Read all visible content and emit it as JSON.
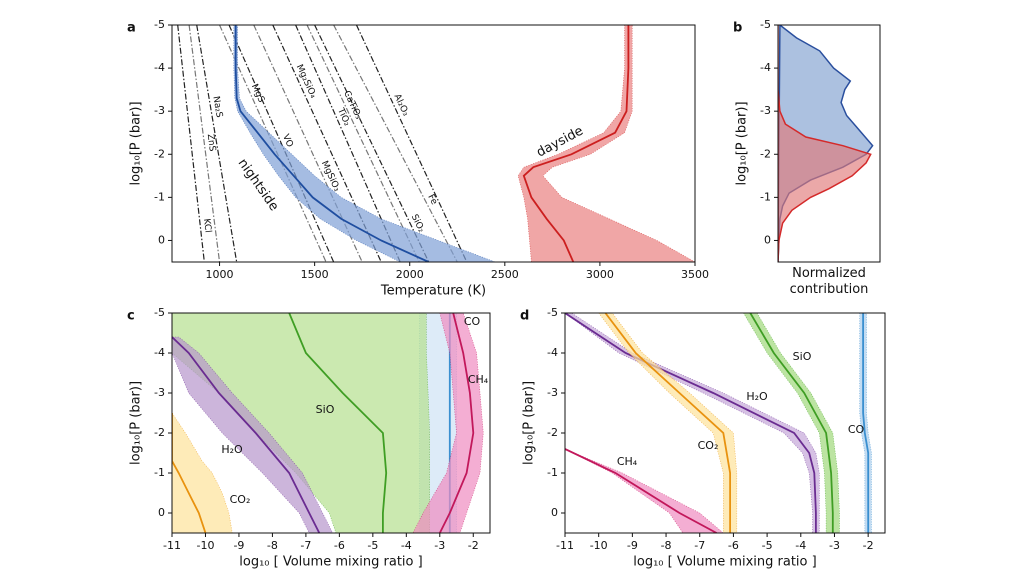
{
  "chart_data": [
    {
      "type": "line",
      "panel_label": "a",
      "xlabel": "Temperature (K)",
      "ylabel": "log₁₀[P (bar)]",
      "xlim": [
        750,
        3500
      ],
      "xticks": [
        1000,
        1500,
        2000,
        2500,
        3000,
        3500
      ],
      "ylim": [
        0.5,
        -5
      ],
      "yticks": [
        -5,
        -4,
        -3,
        -2,
        -1,
        0
      ],
      "series": [
        {
          "name": "nightside",
          "color": "#1f4ea0",
          "band_color": "#7f9fd6",
          "y": [
            -5,
            -4,
            -3.3,
            -3,
            -2.5,
            -2,
            -1.5,
            -1,
            -0.5,
            0,
            0.5
          ],
          "x": [
            1085,
            1085,
            1090,
            1110,
            1200,
            1290,
            1390,
            1490,
            1640,
            1850,
            2100
          ],
          "x_low": [
            1075,
            1075,
            1080,
            1095,
            1160,
            1230,
            1310,
            1400,
            1530,
            1720,
            1950
          ],
          "x_high": [
            1095,
            1095,
            1105,
            1140,
            1260,
            1380,
            1500,
            1640,
            1850,
            2150,
            2450
          ]
        },
        {
          "name": "dayside",
          "color": "#cc1f1f",
          "band_color": "#e98080",
          "y": [
            -5,
            -4,
            -3,
            -2.5,
            -2,
            -1.7,
            -1.5,
            -1,
            -0.5,
            0,
            0.5
          ],
          "x": [
            3150,
            3150,
            3140,
            3080,
            2850,
            2650,
            2600,
            2640,
            2720,
            2810,
            2860
          ],
          "x_low": [
            3130,
            3130,
            3110,
            3020,
            2780,
            2600,
            2570,
            2600,
            2620,
            2630,
            2640
          ],
          "x_high": [
            3170,
            3170,
            3170,
            3130,
            2950,
            2750,
            2700,
            2800,
            3050,
            3300,
            3500
          ]
        }
      ],
      "condensation_curves": [
        {
          "name": "KCl",
          "color": "#222222",
          "y": [
            -5,
            0.5
          ],
          "x": [
            780,
            920
          ]
        },
        {
          "name": "ZnS",
          "color": "#777777",
          "y": [
            -5,
            0.5
          ],
          "x": [
            840,
            1000
          ]
        },
        {
          "name": "Na₂S",
          "color": "#222222",
          "y": [
            -5,
            0.5
          ],
          "x": [
            880,
            1090
          ]
        },
        {
          "name": "MgS",
          "color": "#777777",
          "y": [
            -5,
            0.5
          ],
          "x": [
            1000,
            1560
          ]
        },
        {
          "name": "VO",
          "color": "#222222",
          "y": [
            -5,
            0.5
          ],
          "x": [
            1050,
            1600
          ]
        },
        {
          "name": "MgSiO₃",
          "color": "#777777",
          "y": [
            -5,
            0.5
          ],
          "x": [
            1180,
            1750
          ]
        },
        {
          "name": "Mg₂SiO₄",
          "color": "#222222",
          "y": [
            -5,
            0.5
          ],
          "x": [
            1280,
            1850
          ]
        },
        {
          "name": "TiO₂",
          "color": "#222222",
          "y": [
            -5,
            0.5
          ],
          "x": [
            1400,
            1950
          ]
        },
        {
          "name": "CaTiO₃",
          "color": "#777777",
          "y": [
            -5,
            0.5
          ],
          "x": [
            1460,
            2050
          ]
        },
        {
          "name": "SiO₂",
          "color": "#222222",
          "y": [
            -5,
            0.5
          ],
          "x": [
            1500,
            2100
          ]
        },
        {
          "name": "Fe",
          "color": "#777777",
          "y": [
            -5,
            0.5
          ],
          "x": [
            1600,
            2250
          ]
        },
        {
          "name": "Al₂O₃",
          "color": "#222222",
          "y": [
            -5,
            0.5
          ],
          "x": [
            1720,
            2300
          ]
        }
      ]
    },
    {
      "type": "area",
      "panel_label": "b",
      "xlabel": "Normalized contribution",
      "ylabel": "log₁₀[P (bar)]",
      "xlim": [
        0,
        1.1
      ],
      "ylim": [
        0.5,
        -5
      ],
      "yticks": [
        -5,
        -4,
        -3,
        -2,
        -1,
        0
      ],
      "series": [
        {
          "color": "#2a4f9e",
          "band_color": "#7f9fd0",
          "y": [
            -5,
            -4.7,
            -4.4,
            -4,
            -3.7,
            -3.5,
            -3.2,
            -2.9,
            -2.5,
            -2.2,
            -2,
            -1.7,
            -1.4,
            -1.1,
            -0.8,
            -0.5,
            0,
            0.5
          ],
          "x": [
            0.02,
            0.2,
            0.45,
            0.6,
            0.78,
            0.72,
            0.68,
            0.74,
            0.9,
            1.02,
            0.95,
            0.7,
            0.35,
            0.12,
            0.05,
            0.02,
            0.01,
            0
          ]
        },
        {
          "color": "#d42a2a",
          "band_color": "#e07a7a",
          "y": [
            -5,
            -3.5,
            -3,
            -2.7,
            -2.4,
            -2.2,
            -2,
            -1.8,
            -1.5,
            -1.2,
            -1,
            -0.7,
            -0.4,
            0,
            0.5
          ],
          "x": [
            0,
            0,
            0.02,
            0.08,
            0.3,
            0.7,
            1.0,
            0.95,
            0.8,
            0.55,
            0.35,
            0.15,
            0.05,
            0.01,
            0
          ]
        }
      ]
    },
    {
      "type": "line",
      "panel_label": "c",
      "xlabel": "log₁₀ [ Volume mixing ratio ]",
      "ylabel": "log₁₀[P (bar)]",
      "xlim": [
        -11,
        -1.5
      ],
      "xticks": [
        -11,
        -10,
        -9,
        -8,
        -7,
        -6,
        -5,
        -4,
        -3,
        -2
      ],
      "ylim": [
        0.5,
        -5
      ],
      "yticks": [
        -5,
        -4,
        -3,
        -2,
        -1,
        0
      ],
      "series": [
        {
          "name": "CO",
          "color": "#3a8fd0",
          "band_color": "#cfe3f5",
          "y": [
            -5,
            -4,
            -3,
            -2,
            -1,
            0,
            0.5
          ],
          "x": [
            -2.7,
            -2.7,
            -2.7,
            -2.7,
            -2.7,
            -2.7,
            -2.7
          ],
          "x_low": [
            -3.6,
            -3.6,
            -3.6,
            -3.6,
            -3.6,
            -3.6,
            -3.6
          ],
          "x_high": [
            -2.5,
            -2.5,
            -2.5,
            -2.5,
            -2.5,
            -2.5,
            -2.5
          ]
        },
        {
          "name": "SiO",
          "color": "#3f9e24",
          "band_color": "#b5e08f",
          "y": [
            -5,
            -4,
            -3,
            -2,
            -1,
            0,
            0.5
          ],
          "x": [
            -7.5,
            -7.0,
            -5.9,
            -4.7,
            -4.6,
            -4.7,
            -4.7
          ],
          "x_low": [
            -11,
            -11,
            -9.6,
            -8.5,
            -7.3,
            -6.3,
            -6.1
          ],
          "x_high": [
            -3.4,
            -3.4,
            -3.35,
            -3.3,
            -3.3,
            -3.3,
            -3.3
          ]
        },
        {
          "name": "H₂O",
          "color": "#6a2c91",
          "band_color": "#b795cc",
          "y": [
            -4.4,
            -4,
            -3,
            -2,
            -1,
            0,
            0.5
          ],
          "x": [
            -11,
            -10.5,
            -9.6,
            -8.5,
            -7.5,
            -6.9,
            -6.6
          ],
          "x_low": [
            -11,
            -11,
            -10.5,
            -9.5,
            -8.3,
            -7.2,
            -6.9
          ],
          "x_high": [
            -10.8,
            -10.2,
            -9.2,
            -8.1,
            -7.1,
            -6.5,
            -6.2
          ]
        },
        {
          "name": "CO₂",
          "color": "#e8920f",
          "band_color": "#fde29a",
          "y": [
            -2.5,
            -2,
            -1.3,
            -1,
            -0.5,
            0,
            0.5
          ],
          "x": [
            -11,
            -11,
            -11,
            -10.8,
            -10.5,
            -10.2,
            -10
          ],
          "x_low": [
            -11,
            -11,
            -11,
            -11,
            -11,
            -11,
            -11
          ],
          "x_high": [
            -11,
            -10.6,
            -10.1,
            -9.8,
            -9.5,
            -9.3,
            -9.2
          ]
        },
        {
          "name": "CH₄",
          "color": "#c2185b",
          "band_color": "#f08cc0",
          "y": [
            -5,
            -4,
            -3,
            -2,
            -1,
            0,
            0.5
          ],
          "x": [
            -2.6,
            -2.3,
            -2.1,
            -2.0,
            -2.2,
            -2.7,
            -3.0
          ],
          "x_low": [
            -3.0,
            -2.7,
            -2.6,
            -2.5,
            -2.8,
            -3.5,
            -3.8
          ],
          "x_high": [
            -2.3,
            -1.9,
            -1.8,
            -1.7,
            -1.8,
            -2.2,
            -2.4
          ]
        }
      ]
    },
    {
      "type": "line",
      "panel_label": "d",
      "xlabel": "log₁₀ [ Volume mixing ratio ]",
      "ylabel": "log₁₀[P (bar)]",
      "xlim": [
        -11,
        -1.5
      ],
      "xticks": [
        -11,
        -10,
        -9,
        -8,
        -7,
        -6,
        -5,
        -4,
        -3,
        -2
      ],
      "ylim": [
        0.5,
        -5
      ],
      "yticks": [
        -5,
        -4,
        -3,
        -2,
        -1,
        0
      ],
      "series": [
        {
          "name": "CO",
          "color": "#3a8fd0",
          "band_color": "#a9cdec",
          "y": [
            -5,
            -2.5,
            -2,
            -1.5,
            0.5
          ],
          "x": [
            -2.15,
            -2.15,
            -2.1,
            -2.0,
            -2.0
          ],
          "x_low": [
            -2.25,
            -2.25,
            -2.2,
            -2.1,
            -2.1
          ],
          "x_high": [
            -2.05,
            -2.05,
            -2.0,
            -1.9,
            -1.9
          ]
        },
        {
          "name": "SiO",
          "color": "#3f9e24",
          "band_color": "#9fd87a",
          "y": [
            -5,
            -4,
            -3,
            -2,
            -1,
            0,
            0.5
          ],
          "x": [
            -5.5,
            -4.8,
            -3.9,
            -3.25,
            -3.1,
            -3.05,
            -3.05
          ],
          "x_low": [
            -5.7,
            -5.0,
            -4.1,
            -3.45,
            -3.3,
            -3.25,
            -3.25
          ],
          "x_high": [
            -5.3,
            -4.6,
            -3.7,
            -3.05,
            -2.9,
            -2.85,
            -2.85
          ]
        },
        {
          "name": "H₂O",
          "color": "#6a2c91",
          "band_color": "#c4a6d8",
          "y": [
            -5,
            -4,
            -3,
            -2,
            -1.5,
            -1,
            0,
            0.5
          ],
          "x": [
            -11,
            -9.2,
            -6.6,
            -4.2,
            -3.75,
            -3.6,
            -3.55,
            -3.55
          ],
          "x_low": [
            -11,
            -9.4,
            -6.9,
            -4.5,
            -3.95,
            -3.75,
            -3.65,
            -3.65
          ],
          "x_high": [
            -10.8,
            -9.0,
            -6.3,
            -3.9,
            -3.55,
            -3.45,
            -3.45,
            -3.45
          ]
        },
        {
          "name": "CO₂",
          "color": "#e8920f",
          "band_color": "#fde29a",
          "y": [
            -5,
            -4,
            -3,
            -2,
            -1,
            0,
            0.5
          ],
          "x": [
            -9.8,
            -8.9,
            -7.6,
            -6.3,
            -6.1,
            -6.1,
            -6.1
          ],
          "x_low": [
            -10,
            -9.1,
            -7.9,
            -6.6,
            -6.3,
            -6.3,
            -6.3
          ],
          "x_high": [
            -9.6,
            -8.7,
            -7.3,
            -6.0,
            -5.9,
            -5.9,
            -5.9
          ]
        },
        {
          "name": "CH₄",
          "color": "#c2185b",
          "band_color": "#f08cc0",
          "y": [
            -1.6,
            -1,
            0,
            0.5
          ],
          "x": [
            -11,
            -9.5,
            -7.6,
            -6.5
          ],
          "x_low": [
            -11,
            -9.6,
            -7.9,
            -7.5
          ],
          "x_high": [
            -11,
            -9.3,
            -7.0,
            -6.3
          ]
        }
      ]
    }
  ]
}
